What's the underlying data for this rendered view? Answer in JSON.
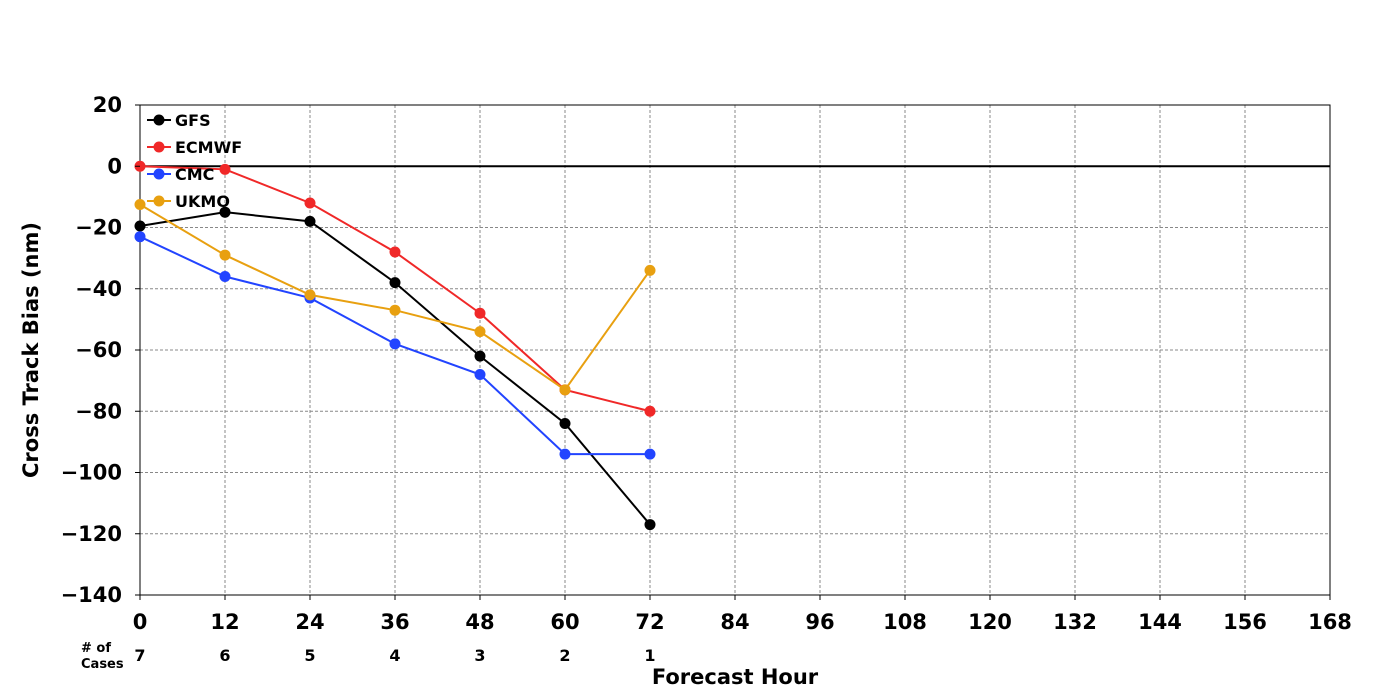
{
  "chart_data": {
    "type": "line",
    "xlabel": "Forecast Hour",
    "ylabel": "Cross Track Bias (nm)",
    "xlim": [
      0,
      168
    ],
    "ylim": [
      -140,
      20
    ],
    "xticks": [
      0,
      12,
      24,
      36,
      48,
      60,
      72,
      84,
      96,
      108,
      120,
      132,
      144,
      156,
      168
    ],
    "yticks": [
      20,
      0,
      -20,
      -40,
      -60,
      -80,
      -100,
      -120,
      -140
    ],
    "ytick_labels": [
      "20",
      "0",
      "−20",
      "−40",
      "−60",
      "−80",
      "−100",
      "−120",
      "−140"
    ],
    "grid": true,
    "zero_line": true,
    "legend_position": "top-left",
    "x": [
      0,
      12,
      24,
      36,
      48,
      60,
      72
    ],
    "series": [
      {
        "name": "GFS",
        "color": "#000000",
        "values": [
          -19.5,
          -15,
          -18,
          -38,
          -62,
          -84,
          -117
        ]
      },
      {
        "name": "ECMWF",
        "color": "#f02828",
        "values": [
          0,
          -1,
          -12,
          -28,
          -48,
          -73,
          -80
        ]
      },
      {
        "name": "CMC",
        "color": "#2244ff",
        "values": [
          -23,
          -36,
          -43,
          -58,
          -68,
          -94,
          -94
        ]
      },
      {
        "name": "UKMO",
        "color": "#e8a010",
        "values": [
          -12.5,
          -29,
          -42,
          -47,
          -54,
          -73,
          -34
        ]
      }
    ],
    "cases": {
      "label": "# of\nCases",
      "x": [
        0,
        12,
        24,
        36,
        48,
        60,
        72
      ],
      "values": [
        "7",
        "6",
        "5",
        "4",
        "3",
        "2",
        "1"
      ]
    }
  }
}
